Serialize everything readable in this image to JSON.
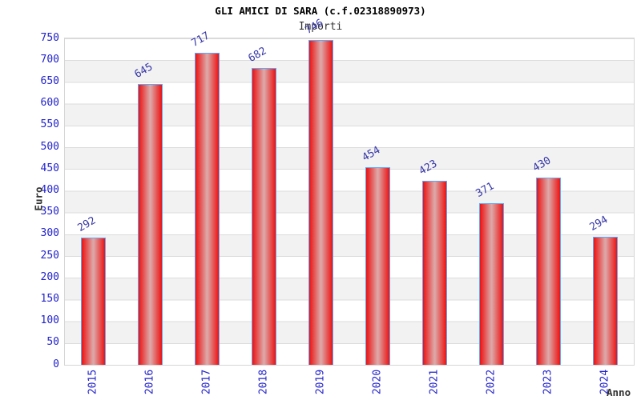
{
  "chart_data": {
    "type": "bar",
    "title": "GLI AMICI DI SARA (c.f.02318890973)",
    "subtitle": "Importi",
    "xlabel": "Anno",
    "ylabel": "Euro",
    "categories": [
      "2015",
      "2016",
      "2017",
      "2018",
      "2019",
      "2020",
      "2021",
      "2022",
      "2023",
      "2024"
    ],
    "values": [
      292,
      645,
      717,
      682,
      746,
      454,
      423,
      371,
      430,
      294
    ],
    "ylim": [
      0,
      750
    ],
    "ytick_step": 50,
    "grid": "horizontal-bands-alternating",
    "legend": "none",
    "colors": {
      "bar_edge_red": "#ec1212",
      "bar_center_highlight": "#ddabab",
      "bar_border": "#5ea8f8",
      "tick_label": "#2222cc",
      "value_label": "#3737a8",
      "band_gray": "#f2f2f2",
      "plot_border": "#d6d6d6",
      "title": "#000000",
      "axis_title": "#333333"
    }
  }
}
